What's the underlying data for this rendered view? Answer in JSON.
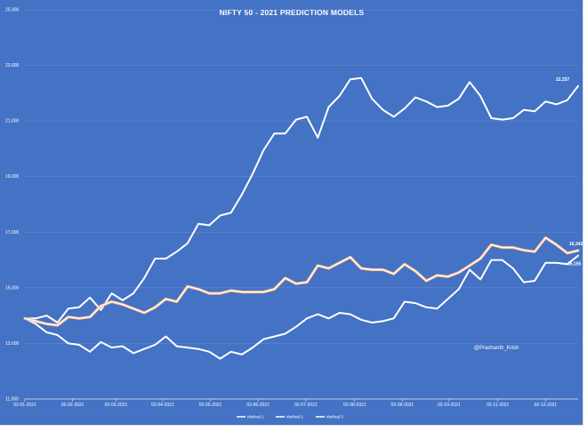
{
  "chart_data": {
    "type": "line",
    "title": "NIFTY 50 - 2021 PREDICTION MODELS",
    "xlabel": "",
    "ylabel": "",
    "ylim": [
      11000,
      25000
    ],
    "y_ticks": [
      11000,
      13000,
      15000,
      17000,
      19000,
      21000,
      23000,
      25000
    ],
    "y_tick_labels": [
      "11,000",
      "13,000",
      "15,000",
      "17,000",
      "19,000",
      "21,000",
      "23,000",
      "25,000"
    ],
    "x_tick_labels": [
      "02-01-2021",
      "02-02-2021",
      "02-03-2021",
      "02-04-2021",
      "02-05-2021",
      "02-06-2021",
      "02-07-2021",
      "02-08-2021",
      "02-09-2021",
      "02-10-2021",
      "02-11-2021",
      "02-12-2021"
    ],
    "x_tick_weeks": [
      0,
      4.4,
      8.4,
      12.7,
      17.1,
      21.5,
      25.9,
      30.4,
      34.8,
      39.1,
      43.6,
      48
    ],
    "legend_position": "bottom",
    "series": [
      {
        "name": "Method 1",
        "color": "#ffffff",
        "end_label": "22,257",
        "values": [
          13900,
          13900,
          14000,
          13750,
          14250,
          14300,
          14650,
          14200,
          14800,
          14550,
          14800,
          15350,
          16050,
          16050,
          16300,
          16600,
          17300,
          17250,
          17600,
          17700,
          18350,
          19100,
          19950,
          20550,
          20550,
          21050,
          21150,
          20400,
          21500,
          21900,
          22500,
          22550,
          21800,
          21400,
          21150,
          21450,
          21850,
          21700,
          21500,
          21550,
          21800,
          22400,
          21900,
          21100,
          21050,
          21100,
          21400,
          21350,
          21700,
          21600,
          21750,
          22257
        ]
      },
      {
        "name": "Method 2",
        "color": "#ffffff",
        "end_label": "16,155",
        "values": [
          13900,
          13700,
          13400,
          13300,
          13000,
          12950,
          12700,
          13050,
          12850,
          12900,
          12650,
          12800,
          12950,
          13250,
          12900,
          12850,
          12800,
          12700,
          12450,
          12700,
          12600,
          12850,
          13150,
          13250,
          13350,
          13600,
          13900,
          14050,
          13900,
          14100,
          14050,
          13850,
          13750,
          13800,
          13900,
          14500,
          14450,
          14300,
          14250,
          14600,
          14950,
          15650,
          15300,
          16000,
          16000,
          15700,
          15200,
          15250,
          15900,
          15900,
          15850,
          16155
        ]
      },
      {
        "name": "Method 3",
        "color": "#f4b183",
        "end_label": "16,342",
        "values": [
          13900,
          13800,
          13700,
          13650,
          13950,
          13900,
          13950,
          14350,
          14500,
          14400,
          14250,
          14100,
          14300,
          14600,
          14500,
          15050,
          14950,
          14800,
          14800,
          14900,
          14850,
          14850,
          14850,
          14950,
          15350,
          15150,
          15200,
          15800,
          15700,
          15900,
          16100,
          15700,
          15650,
          15650,
          15500,
          15850,
          15600,
          15250,
          15450,
          15400,
          15550,
          15800,
          16050,
          16550,
          16450,
          16450,
          16350,
          16300,
          16800,
          16550,
          16250,
          16342
        ]
      }
    ],
    "annotations": [
      "@Prashanth_Krish"
    ]
  }
}
